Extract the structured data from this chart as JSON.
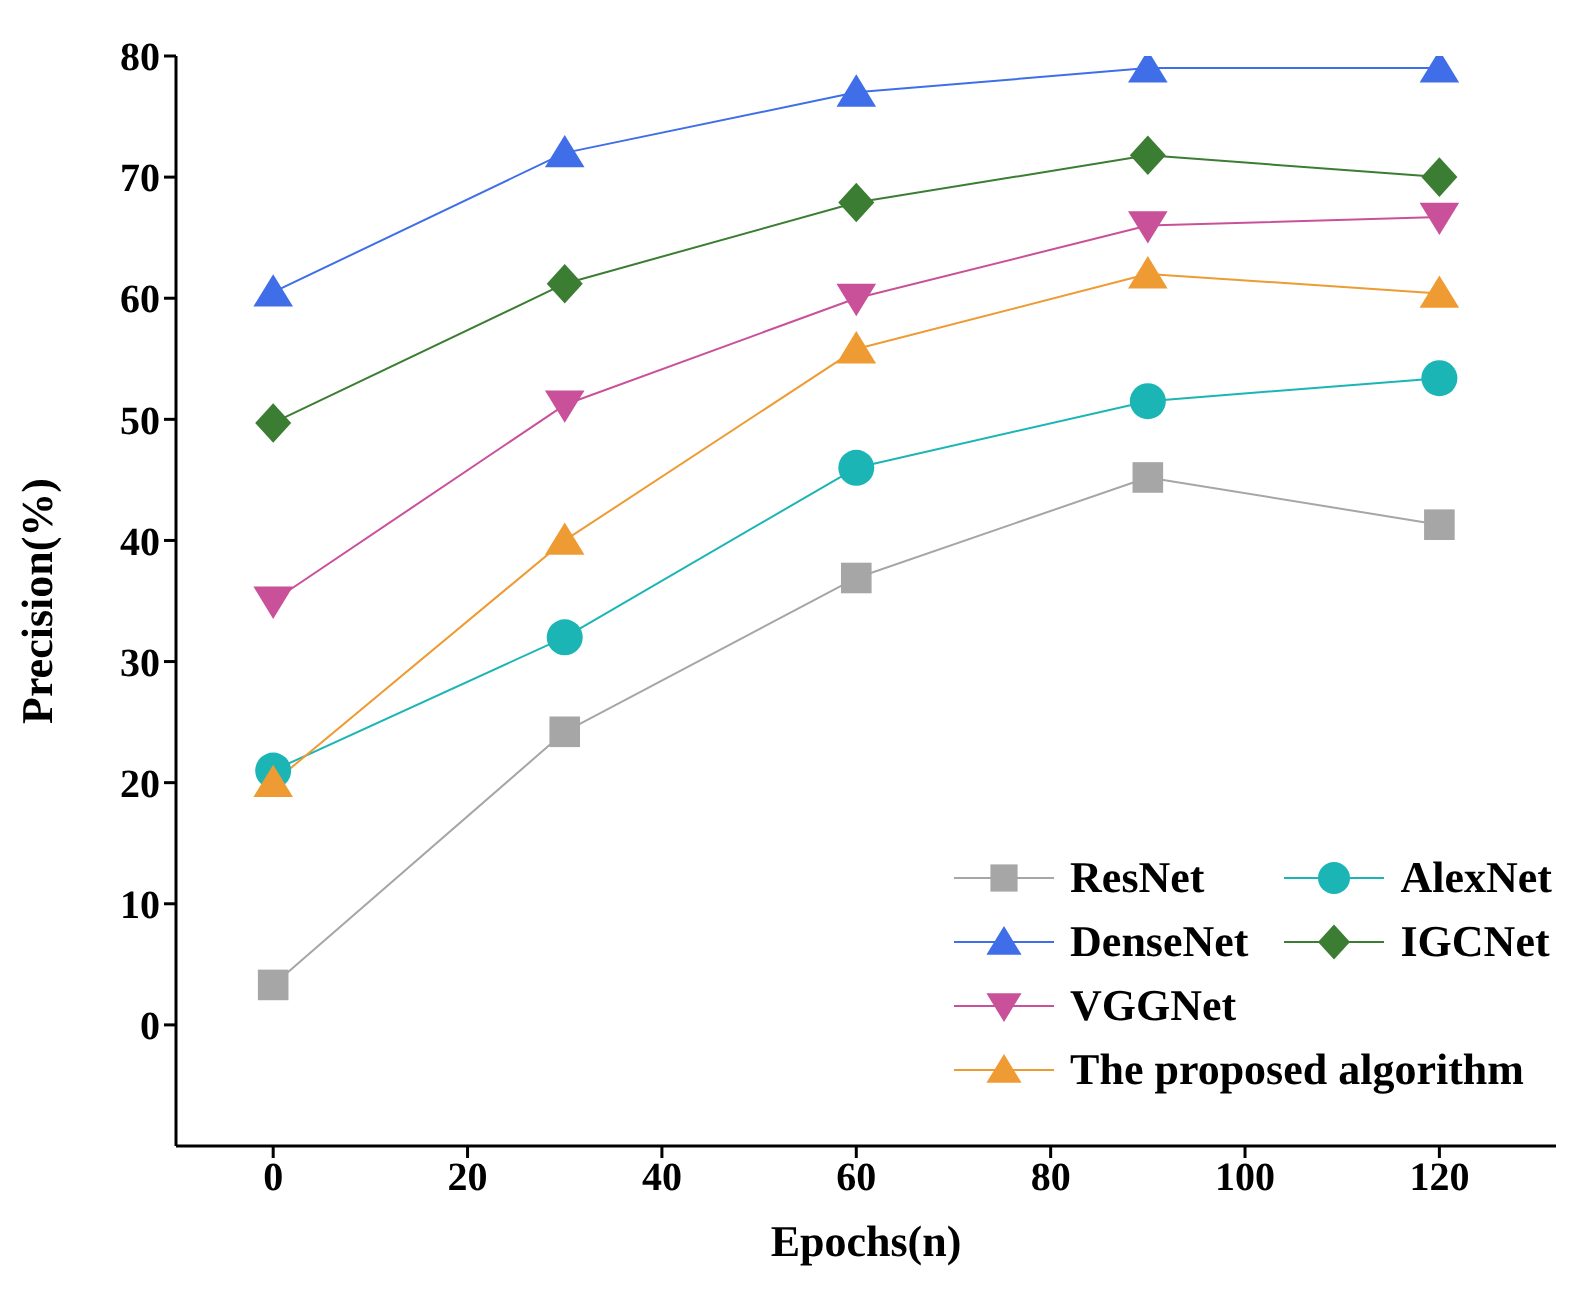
{
  "chart_data": {
    "type": "line",
    "xlabel": "Epochs(n)",
    "ylabel": "Precision(%)",
    "x": [
      0,
      30,
      60,
      90,
      120
    ],
    "xlim": [
      -10,
      132
    ],
    "xticks": [
      0,
      20,
      40,
      60,
      80,
      100,
      120
    ],
    "ylim": [
      -10,
      80
    ],
    "yticks": [
      0,
      10,
      20,
      30,
      40,
      50,
      60,
      70,
      80
    ],
    "grid": false,
    "legend": "bottom right",
    "line_style": "solid",
    "series": [
      {
        "name": "ResNet",
        "color": "#a6a6a6",
        "marker": "square",
        "values": [
          3.3,
          24.2,
          36.9,
          45.2,
          41.3
        ]
      },
      {
        "name": "AlexNet",
        "color": "#1cb5b5",
        "marker": "circle",
        "values": [
          21,
          32,
          46,
          51.5,
          53.4
        ]
      },
      {
        "name": "DenseNet",
        "color": "#3f6ee8",
        "marker": "triangle",
        "values": [
          60.5,
          72,
          77,
          79,
          79
        ]
      },
      {
        "name": "IGCNet",
        "color": "#3b7d32",
        "marker": "diamond",
        "values": [
          49.7,
          61.2,
          67.9,
          71.8,
          70
        ]
      },
      {
        "name": "VGGNet",
        "color": "#c9519a",
        "marker": "triangle-down",
        "values": [
          35,
          51.2,
          60,
          66,
          66.7
        ]
      },
      {
        "name": "The proposed algorithm",
        "color": "#ee9b33",
        "marker": "triangle",
        "values": [
          20,
          40,
          55.8,
          62,
          60.4
        ]
      }
    ]
  }
}
